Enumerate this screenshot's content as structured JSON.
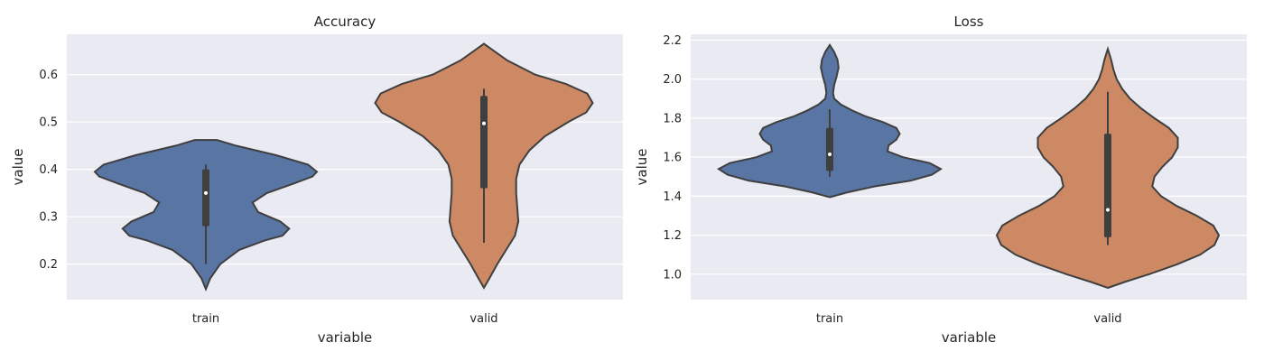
{
  "chart_data": [
    {
      "type": "violin",
      "title": "Accuracy",
      "xlabel": "variable",
      "ylabel": "value",
      "ylim": [
        0.125,
        0.685
      ],
      "yticks": [
        "0.2",
        "0.3",
        "0.4",
        "0.5",
        "0.6"
      ],
      "grid": true,
      "categories": [
        {
          "name": "train",
          "color": "#5975a4",
          "stats": {
            "min": 0.2,
            "q1": 0.28,
            "median": 0.35,
            "q3": 0.4,
            "max": 0.41
          },
          "density": [
            [
              0.147,
              0.0
            ],
            [
              0.17,
              0.04
            ],
            [
              0.2,
              0.13
            ],
            [
              0.23,
              0.3
            ],
            [
              0.25,
              0.53
            ],
            [
              0.26,
              0.69
            ],
            [
              0.275,
              0.75
            ],
            [
              0.29,
              0.67
            ],
            [
              0.31,
              0.47
            ],
            [
              0.33,
              0.42
            ],
            [
              0.35,
              0.55
            ],
            [
              0.37,
              0.79
            ],
            [
              0.385,
              0.96
            ],
            [
              0.395,
              1.0
            ],
            [
              0.41,
              0.92
            ],
            [
              0.43,
              0.63
            ],
            [
              0.45,
              0.27
            ],
            [
              0.462,
              0.1
            ]
          ]
        },
        {
          "name": "valid",
          "color": "#cc8963",
          "stats": {
            "min": 0.245,
            "q1": 0.36,
            "median": 0.497,
            "q3": 0.555,
            "max": 0.57
          },
          "density": [
            [
              0.15,
              0.0
            ],
            [
              0.17,
              0.05
            ],
            [
              0.2,
              0.12
            ],
            [
              0.23,
              0.2
            ],
            [
              0.26,
              0.28
            ],
            [
              0.29,
              0.31
            ],
            [
              0.32,
              0.3
            ],
            [
              0.35,
              0.29
            ],
            [
              0.38,
              0.29
            ],
            [
              0.41,
              0.32
            ],
            [
              0.44,
              0.41
            ],
            [
              0.47,
              0.55
            ],
            [
              0.5,
              0.76
            ],
            [
              0.52,
              0.92
            ],
            [
              0.54,
              0.98
            ],
            [
              0.56,
              0.93
            ],
            [
              0.58,
              0.74
            ],
            [
              0.6,
              0.46
            ],
            [
              0.63,
              0.21
            ],
            [
              0.655,
              0.06
            ],
            [
              0.665,
              0.0
            ]
          ]
        }
      ]
    },
    {
      "type": "violin",
      "title": "Loss",
      "xlabel": "variable",
      "ylabel": "value",
      "ylim": [
        0.87,
        2.23
      ],
      "yticks": [
        "1.0",
        "1.2",
        "1.4",
        "1.6",
        "1.8",
        "2.0",
        "2.2"
      ],
      "grid": true,
      "categories": [
        {
          "name": "train",
          "color": "#5975a4",
          "stats": {
            "min": 1.5,
            "q1": 1.53,
            "median": 1.615,
            "q3": 1.75,
            "max": 1.845
          },
          "density": [
            [
              1.395,
              0.0
            ],
            [
              1.42,
              0.16
            ],
            [
              1.45,
              0.4
            ],
            [
              1.48,
              0.73
            ],
            [
              1.51,
              0.92
            ],
            [
              1.54,
              1.0
            ],
            [
              1.57,
              0.9
            ],
            [
              1.6,
              0.66
            ],
            [
              1.63,
              0.52
            ],
            [
              1.66,
              0.53
            ],
            [
              1.69,
              0.6
            ],
            [
              1.72,
              0.63
            ],
            [
              1.75,
              0.6
            ],
            [
              1.78,
              0.48
            ],
            [
              1.81,
              0.32
            ],
            [
              1.84,
              0.2
            ],
            [
              1.87,
              0.1
            ],
            [
              1.9,
              0.04
            ],
            [
              1.93,
              0.03
            ],
            [
              1.97,
              0.04
            ],
            [
              2.01,
              0.06
            ],
            [
              2.06,
              0.08
            ],
            [
              2.1,
              0.07
            ],
            [
              2.14,
              0.04
            ],
            [
              2.175,
              0.0
            ]
          ]
        },
        {
          "name": "valid",
          "color": "#cc8963",
          "stats": {
            "min": 1.15,
            "q1": 1.19,
            "median": 1.33,
            "q3": 1.72,
            "max": 1.935
          },
          "density": [
            [
              0.93,
              0.0
            ],
            [
              0.96,
              0.15
            ],
            [
              1.0,
              0.37
            ],
            [
              1.05,
              0.62
            ],
            [
              1.1,
              0.83
            ],
            [
              1.15,
              0.96
            ],
            [
              1.2,
              1.0
            ],
            [
              1.25,
              0.95
            ],
            [
              1.3,
              0.8
            ],
            [
              1.35,
              0.62
            ],
            [
              1.4,
              0.48
            ],
            [
              1.45,
              0.4
            ],
            [
              1.5,
              0.42
            ],
            [
              1.55,
              0.49
            ],
            [
              1.6,
              0.58
            ],
            [
              1.65,
              0.63
            ],
            [
              1.7,
              0.63
            ],
            [
              1.75,
              0.55
            ],
            [
              1.8,
              0.42
            ],
            [
              1.85,
              0.3
            ],
            [
              1.9,
              0.2
            ],
            [
              1.95,
              0.13
            ],
            [
              2.0,
              0.08
            ],
            [
              2.05,
              0.05
            ],
            [
              2.1,
              0.03
            ],
            [
              2.155,
              0.0
            ]
          ]
        }
      ]
    }
  ]
}
